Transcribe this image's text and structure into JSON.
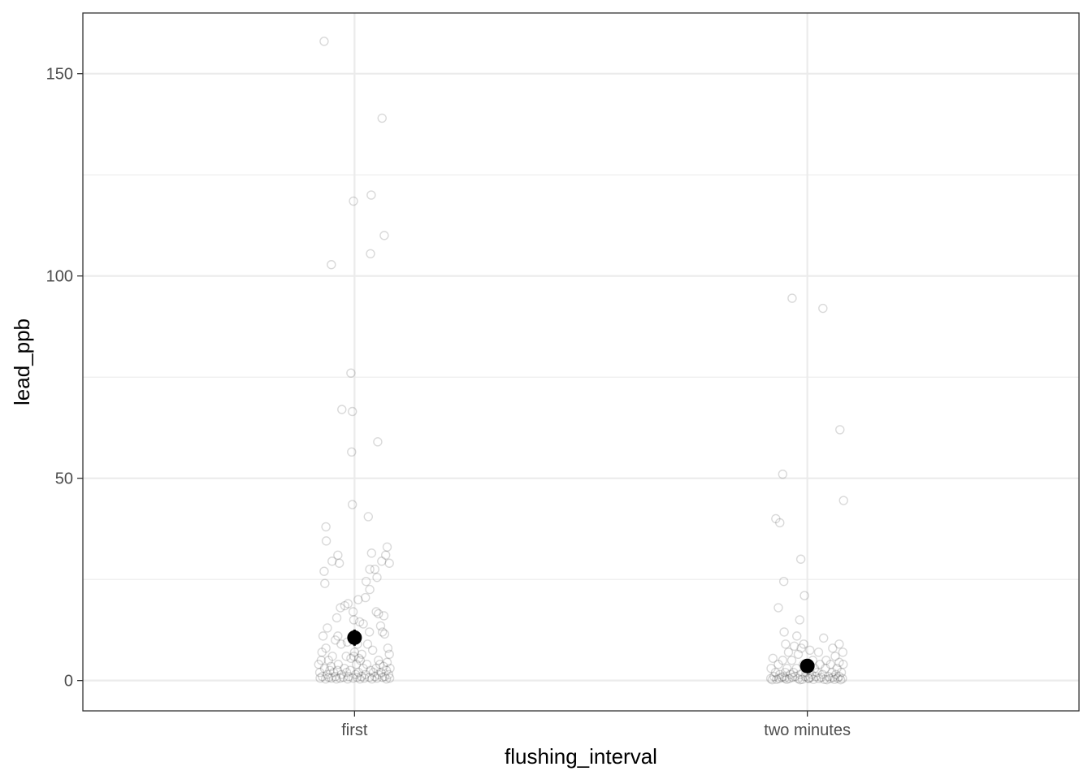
{
  "chart_data": {
    "type": "scatter",
    "subtype": "jitter-strip with mean and error bar",
    "xlabel": "flushing_interval",
    "ylabel": "lead_ppb",
    "categories": [
      "first",
      "two minutes"
    ],
    "ylim": [
      -7.5,
      165
    ],
    "y_ticks": [
      0,
      50,
      100,
      150
    ],
    "y_tick_labels": [
      "0",
      "50",
      "100",
      "150"
    ],
    "grid": true,
    "theme": "black-and-white",
    "point_color": "#000000",
    "point_alpha": 0.15,
    "summary_color": "#000000",
    "series": [
      {
        "category": "first",
        "mean": 10.6,
        "error": [
          8.6,
          12.6
        ],
        "points": [
          [
            -0.084,
            158
          ],
          [
            0.076,
            139
          ],
          [
            -0.003,
            118.5
          ],
          [
            0.046,
            120
          ],
          [
            0.082,
            110
          ],
          [
            0.044,
            105.5
          ],
          [
            -0.064,
            102.8
          ],
          [
            -0.01,
            76
          ],
          [
            -0.035,
            67
          ],
          [
            -0.006,
            66.5
          ],
          [
            -0.008,
            56.5
          ],
          [
            0.064,
            59
          ],
          [
            -0.006,
            43.5
          ],
          [
            0.038,
            40.5
          ],
          [
            -0.079,
            38
          ],
          [
            -0.078,
            34.5
          ],
          [
            -0.046,
            31
          ],
          [
            0.047,
            31.5
          ],
          [
            0.09,
            33
          ],
          [
            0.086,
            31
          ],
          [
            -0.062,
            29.5
          ],
          [
            -0.042,
            29
          ],
          [
            0.075,
            29.5
          ],
          [
            0.096,
            29
          ],
          [
            -0.084,
            27
          ],
          [
            -0.082,
            24
          ],
          [
            0.042,
            27.5
          ],
          [
            0.056,
            27.5
          ],
          [
            0.062,
            25.5
          ],
          [
            0.032,
            24.5
          ],
          [
            0.042,
            22.5
          ],
          [
            0.03,
            20.5
          ],
          [
            0.01,
            20
          ],
          [
            -0.018,
            19
          ],
          [
            -0.027,
            18.5
          ],
          [
            -0.039,
            18
          ],
          [
            -0.004,
            17
          ],
          [
            0.06,
            17
          ],
          [
            0.066,
            16.5
          ],
          [
            0.081,
            16
          ],
          [
            -0.049,
            15.5
          ],
          [
            -0.002,
            15
          ],
          [
            0.024,
            14
          ],
          [
            0.014,
            14.5
          ],
          [
            0.072,
            13.5
          ],
          [
            -0.075,
            13
          ],
          [
            0.041,
            12
          ],
          [
            0.077,
            12
          ],
          [
            0.083,
            11.5
          ],
          [
            -0.087,
            11
          ],
          [
            -0.046,
            11
          ],
          [
            -0.053,
            10
          ],
          [
            -0.037,
            9
          ],
          [
            -0.02,
            9.5
          ],
          [
            0.008,
            9
          ],
          [
            0.036,
            9
          ],
          [
            0.092,
            8
          ],
          [
            -0.079,
            8
          ],
          [
            -0.09,
            7
          ],
          [
            0.05,
            7.5
          ],
          [
            0.096,
            6.5
          ],
          [
            -0.061,
            6
          ],
          [
            -0.023,
            6
          ],
          [
            -0.01,
            5.5
          ],
          [
            -0.092,
            5
          ],
          [
            -0.072,
            5
          ],
          [
            0.016,
            5
          ],
          [
            0.066,
            5
          ],
          [
            0.09,
            4.5
          ],
          [
            -0.099,
            4
          ],
          [
            -0.045,
            4
          ],
          [
            0.005,
            4
          ],
          [
            0.034,
            4
          ],
          [
            0.08,
            3.5
          ],
          [
            -0.083,
            3
          ],
          [
            -0.028,
            3
          ],
          [
            0.024,
            3
          ],
          [
            0.059,
            3
          ],
          [
            0.098,
            3
          ],
          [
            -0.068,
            2.5
          ],
          [
            -0.047,
            2.5
          ],
          [
            -0.012,
            2.5
          ],
          [
            0.044,
            2.5
          ],
          [
            0.088,
            2.5
          ],
          [
            -0.096,
            2
          ],
          [
            -0.058,
            2
          ],
          [
            -0.022,
            2
          ],
          [
            0.011,
            2
          ],
          [
            0.052,
            2
          ],
          [
            0.073,
            2
          ],
          [
            -0.075,
            1.5
          ],
          [
            -0.036,
            1.5
          ],
          [
            0.003,
            1.5
          ],
          [
            0.03,
            1.5
          ],
          [
            0.066,
            1.5
          ],
          [
            0.094,
            1.5
          ],
          [
            -0.089,
            1
          ],
          [
            -0.053,
            1
          ],
          [
            -0.016,
            1
          ],
          [
            0.019,
            1
          ],
          [
            0.056,
            1
          ],
          [
            0.083,
            1
          ],
          [
            -0.071,
            0.8
          ],
          [
            -0.031,
            0.8
          ],
          [
            0.007,
            0.8
          ],
          [
            0.041,
            0.8
          ],
          [
            0.077,
            0.8
          ],
          [
            -0.095,
            0.6
          ],
          [
            -0.064,
            0.6
          ],
          [
            -0.04,
            0.6
          ],
          [
            -0.004,
            0.6
          ],
          [
            0.027,
            0.6
          ],
          [
            0.062,
            0.6
          ],
          [
            0.097,
            0.6
          ],
          [
            -0.08,
            0.4
          ],
          [
            -0.05,
            0.4
          ],
          [
            -0.019,
            0.4
          ],
          [
            0.015,
            0.4
          ],
          [
            0.048,
            0.4
          ],
          [
            0.088,
            0.4
          ],
          [
            0.02,
            6.5
          ],
          [
            -0.065,
            3.5
          ],
          [
            0.07,
            4
          ],
          [
            0.0,
            7
          ],
          [
            -0.002,
            6
          ],
          [
            0.012,
            5.5
          ]
        ]
      },
      {
        "category": "two minutes",
        "mean": 3.6,
        "error": [
          3.1,
          4.1
        ],
        "points": [
          [
            -0.042,
            94.5
          ],
          [
            0.043,
            92
          ],
          [
            0.09,
            62
          ],
          [
            0.1,
            44.5
          ],
          [
            -0.068,
            51
          ],
          [
            -0.087,
            40
          ],
          [
            -0.076,
            39
          ],
          [
            -0.018,
            30
          ],
          [
            -0.065,
            24.5
          ],
          [
            -0.008,
            21
          ],
          [
            -0.08,
            18
          ],
          [
            -0.021,
            15
          ],
          [
            -0.064,
            12
          ],
          [
            0.045,
            10.5
          ],
          [
            -0.029,
            11
          ],
          [
            -0.01,
            9
          ],
          [
            0.088,
            9
          ],
          [
            -0.06,
            9
          ],
          [
            -0.036,
            8.5
          ],
          [
            0.07,
            8
          ],
          [
            -0.017,
            8
          ],
          [
            0.007,
            7.5
          ],
          [
            -0.052,
            7
          ],
          [
            0.031,
            7
          ],
          [
            0.098,
            7
          ],
          [
            -0.025,
            6.5
          ],
          [
            0.077,
            6
          ],
          [
            -0.095,
            5.5
          ],
          [
            -0.068,
            5
          ],
          [
            -0.043,
            5
          ],
          [
            0.015,
            5
          ],
          [
            0.052,
            5
          ],
          [
            0.088,
            4.5
          ],
          [
            -0.08,
            4
          ],
          [
            -0.011,
            4
          ],
          [
            0.035,
            4
          ],
          [
            0.064,
            4
          ],
          [
            0.099,
            4
          ],
          [
            -0.1,
            3
          ],
          [
            -0.056,
            3
          ],
          [
            -0.03,
            3
          ],
          [
            0.02,
            3
          ],
          [
            0.05,
            3
          ],
          [
            0.082,
            3
          ],
          [
            -0.088,
            2
          ],
          [
            -0.061,
            2
          ],
          [
            -0.038,
            2
          ],
          [
            -0.004,
            2
          ],
          [
            0.027,
            2
          ],
          [
            0.068,
            2
          ],
          [
            0.094,
            2
          ],
          [
            -0.076,
            1.5
          ],
          [
            -0.047,
            1.5
          ],
          [
            -0.02,
            1.5
          ],
          [
            0.012,
            1.5
          ],
          [
            0.042,
            1.5
          ],
          [
            0.079,
            1.5
          ],
          [
            -0.092,
            1
          ],
          [
            -0.066,
            1
          ],
          [
            -0.034,
            1
          ],
          [
            -0.006,
            1
          ],
          [
            0.023,
            1
          ],
          [
            0.058,
            1
          ],
          [
            0.088,
            1
          ],
          [
            -0.101,
            0.5
          ],
          [
            -0.078,
            0.5
          ],
          [
            -0.05,
            0.5
          ],
          [
            -0.025,
            0.5
          ],
          [
            0.004,
            0.5
          ],
          [
            0.032,
            0.5
          ],
          [
            0.063,
            0.5
          ],
          [
            0.097,
            0.5
          ],
          [
            -0.085,
            0.3
          ],
          [
            -0.057,
            0.3
          ],
          [
            -0.014,
            0.3
          ],
          [
            0.017,
            0.3
          ],
          [
            0.047,
            0.3
          ],
          [
            0.075,
            0.3
          ],
          [
            -0.071,
            0.8
          ],
          [
            -0.041,
            0.8
          ],
          [
            0.008,
            0.8
          ],
          [
            0.038,
            0.8
          ],
          [
            0.071,
            0.8
          ],
          [
            -0.097,
            0.2
          ],
          [
            -0.02,
            0.2
          ],
          [
            0.054,
            0.2
          ],
          [
            0.092,
            0.2
          ],
          [
            -0.062,
            0.6
          ],
          [
            0.003,
            0.6
          ],
          [
            0.084,
            0.6
          ]
        ]
      }
    ]
  }
}
